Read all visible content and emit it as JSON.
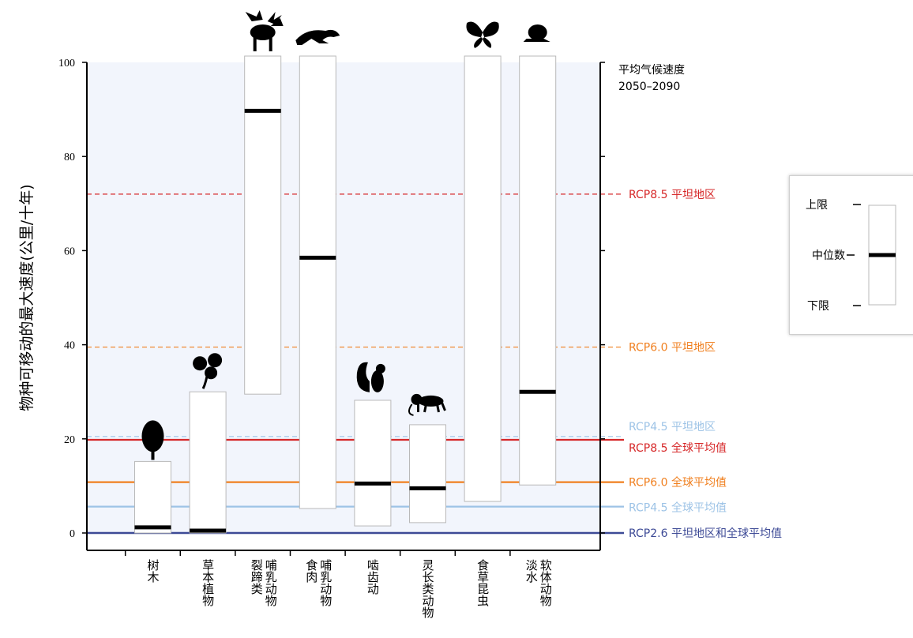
{
  "chart_data": {
    "type": "bar",
    "ylabel": "物种可移动的最大速度(公里/十年)",
    "ylim": [
      0,
      100
    ],
    "yticks": [
      0,
      20,
      40,
      60,
      80,
      100
    ],
    "grid": false,
    "categories": [
      {
        "label": [
          "树木"
        ],
        "icon": "tree-icon",
        "lower": 0,
        "median": 1.2,
        "upper": 15.2
      },
      {
        "label": [
          "草本植物"
        ],
        "icon": "plant-icon",
        "lower": 0,
        "median": 0.5,
        "upper": 30
      },
      {
        "label": [
          "裂蹄类",
          "哺乳动物"
        ],
        "icon": "moose-icon",
        "lower": 29.5,
        "median": 89.7,
        "upper": 100
      },
      {
        "label": [
          "食肉",
          "哺乳动物"
        ],
        "icon": "cheetah-icon",
        "lower": 5.2,
        "median": 58.5,
        "upper": 100
      },
      {
        "label": [
          "啮齿动"
        ],
        "icon": "squirrel-icon",
        "lower": 1.5,
        "median": 10.5,
        "upper": 28.2
      },
      {
        "label": [
          "灵长类动物"
        ],
        "icon": "monkey-icon",
        "lower": 2.2,
        "median": 9.5,
        "upper": 23
      },
      {
        "label": [
          "食草昆虫"
        ],
        "icon": "butterfly-icon",
        "lower": 6.7,
        "median": null,
        "upper": 100
      },
      {
        "label": [
          "淡水",
          "软体动物"
        ],
        "icon": "snail-icon",
        "lower": 10.2,
        "median": 30,
        "upper": 100
      }
    ],
    "reference_lines": [
      {
        "label": "RCP8.5 平坦地区",
        "value": 72,
        "color": "#d62728",
        "style": "dashed"
      },
      {
        "label": "RCP6.0 平坦地区",
        "value": 39.5,
        "color": "#f07f1e",
        "style": "dashed"
      },
      {
        "label": "RCP4.5 平坦地区",
        "value": 20.5,
        "color": "#9dc3e6",
        "style": "dashed"
      },
      {
        "label": "RCP8.5 全球平均值",
        "value": 19.8,
        "color": "#d62728",
        "style": "solid"
      },
      {
        "label": "RCP6.0 全球平均值",
        "value": 10.8,
        "color": "#f07f1e",
        "style": "solid"
      },
      {
        "label": "RCP4.5 全球平均值",
        "value": 5.6,
        "color": "#9dc3e6",
        "style": "solid"
      },
      {
        "label": "RCP2.6 平坦地区和全球平均值",
        "value": 0,
        "color": "#3d4a96",
        "style": "solid"
      }
    ],
    "right_axis_title": [
      "平均气候速度",
      "2050–2090"
    ],
    "legend": {
      "upper": "上限",
      "median": "中位数",
      "lower": "下限",
      "position": "right"
    }
  }
}
